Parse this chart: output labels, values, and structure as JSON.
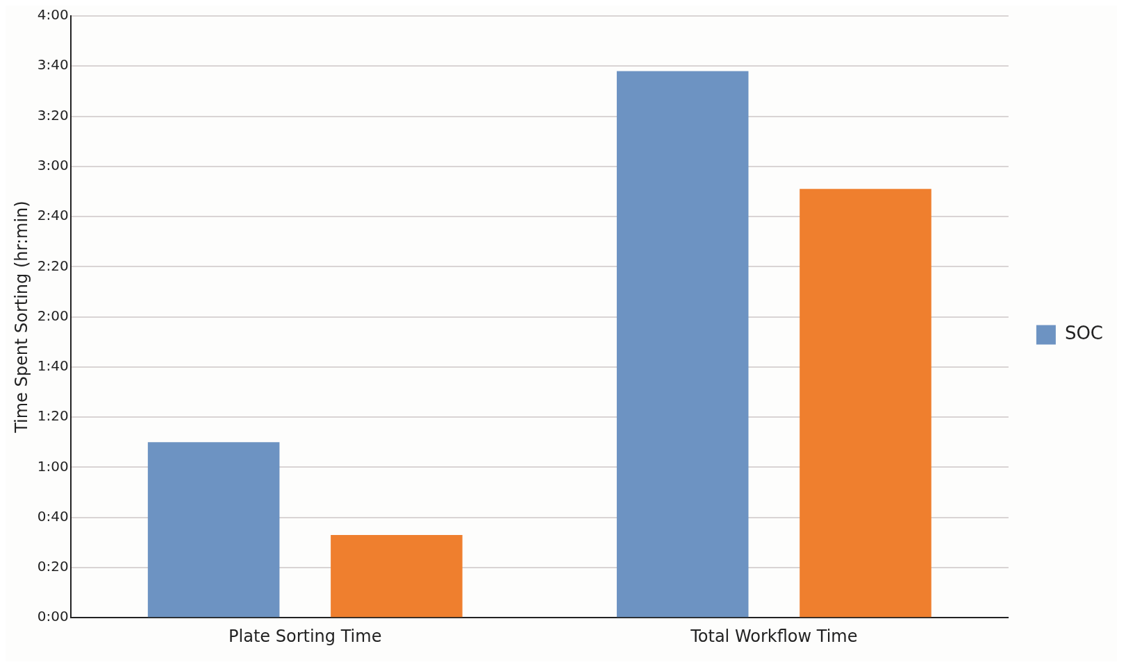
{
  "chart_data": {
    "type": "bar",
    "ylabel": "Time Spent Sorting (hr:min)",
    "categories": [
      "Plate Sorting Time",
      "Total Workflow Time"
    ],
    "series": [
      {
        "name": "SOC",
        "color": "#6d93c2",
        "values": [
          70,
          218
        ]
      },
      {
        "color": "#ef7f2e",
        "values": [
          33,
          171
        ]
      }
    ],
    "ylim": [
      0,
      240
    ],
    "yticks": [
      {
        "value": 0,
        "label": "0:00"
      },
      {
        "value": 20,
        "label": "0:20"
      },
      {
        "value": 40,
        "label": "0:40"
      },
      {
        "value": 60,
        "label": "1:00"
      },
      {
        "value": 80,
        "label": "1:20"
      },
      {
        "value": 100,
        "label": "1:40"
      },
      {
        "value": 120,
        "label": "2:00"
      },
      {
        "value": 140,
        "label": "2:20"
      },
      {
        "value": 160,
        "label": "2:40"
      },
      {
        "value": 180,
        "label": "3:00"
      },
      {
        "value": 200,
        "label": "3:20"
      },
      {
        "value": 220,
        "label": "3:40"
      },
      {
        "value": 240,
        "label": "4:00"
      }
    ],
    "grid": "y",
    "legend": "right"
  }
}
